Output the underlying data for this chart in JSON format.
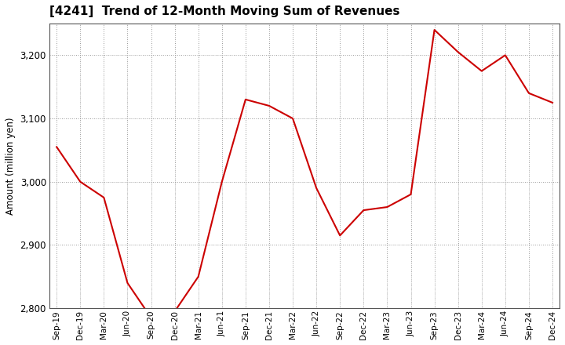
{
  "title": "[4241]  Trend of 12-Month Moving Sum of Revenues",
  "ylabel": "Amount (million yen)",
  "line_color": "#cc0000",
  "background_color": "#ffffff",
  "plot_bg_color": "#ffffff",
  "grid_color": "#999999",
  "ylim": [
    2800,
    3250
  ],
  "yticks": [
    2800,
    2900,
    3000,
    3100,
    3200
  ],
  "labels": [
    "Sep-19",
    "Dec-19",
    "Mar-20",
    "Jun-20",
    "Sep-20",
    "Dec-20",
    "Mar-21",
    "Jun-21",
    "Sep-21",
    "Dec-21",
    "Mar-22",
    "Jun-22",
    "Sep-22",
    "Dec-22",
    "Mar-23",
    "Jun-23",
    "Sep-23",
    "Dec-23",
    "Mar-24",
    "Jun-24",
    "Sep-24",
    "Dec-24"
  ],
  "values": [
    3055,
    3000,
    2975,
    2840,
    2785,
    2795,
    2850,
    3000,
    3130,
    3120,
    3100,
    2990,
    2915,
    2955,
    2960,
    2980,
    3240,
    3205,
    3175,
    3200,
    3140,
    3125
  ]
}
